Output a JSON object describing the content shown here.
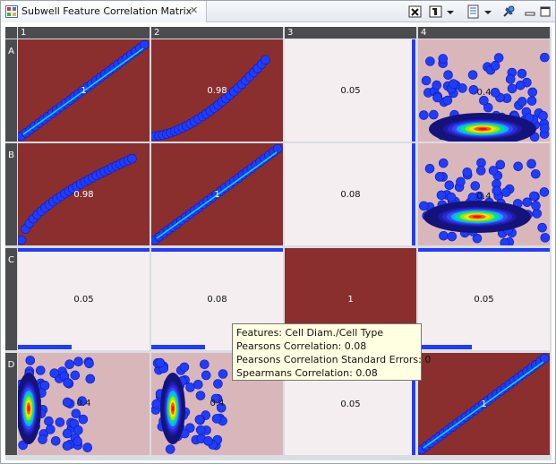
{
  "window": {
    "tab_title": "Subwell Feature Correlation Matrix",
    "close_glyph": "✕"
  },
  "columns": [
    "1",
    "2",
    "3",
    "4"
  ],
  "rows": [
    "A",
    "B",
    "C",
    "D"
  ],
  "colors": {
    "strong": "#8b2e2e",
    "light": "#f4eef0",
    "pale": "#d9b6ba",
    "scatter": "#1f3cff",
    "header_bg": "#4a4c4e"
  },
  "cells": [
    {
      "row": "A",
      "col": "1",
      "value": "1",
      "kind": "diagonal"
    },
    {
      "row": "A",
      "col": "2",
      "value": "0.98",
      "kind": "curve"
    },
    {
      "row": "A",
      "col": "3",
      "value": "0.05",
      "kind": "light"
    },
    {
      "row": "A",
      "col": "4",
      "value": "0.4",
      "kind": "blob"
    },
    {
      "row": "B",
      "col": "1",
      "value": "0.98",
      "kind": "curve-flip"
    },
    {
      "row": "B",
      "col": "2",
      "value": "1",
      "kind": "diagonal"
    },
    {
      "row": "B",
      "col": "3",
      "value": "0.08",
      "kind": "light"
    },
    {
      "row": "B",
      "col": "4",
      "value": "0.4",
      "kind": "blob2"
    },
    {
      "row": "C",
      "col": "1",
      "value": "0.05",
      "kind": "light-bars"
    },
    {
      "row": "C",
      "col": "2",
      "value": "0.08",
      "kind": "light-bars"
    },
    {
      "row": "C",
      "col": "3",
      "value": "1",
      "kind": "solid"
    },
    {
      "row": "C",
      "col": "4",
      "value": "0.05",
      "kind": "light-bars"
    },
    {
      "row": "D",
      "col": "1",
      "value": "0.4",
      "kind": "vblob"
    },
    {
      "row": "D",
      "col": "2",
      "value": "0.4",
      "kind": "vblob2"
    },
    {
      "row": "D",
      "col": "3",
      "value": "0.05",
      "kind": "light"
    },
    {
      "row": "D",
      "col": "4",
      "value": "1",
      "kind": "diagonal"
    }
  ],
  "tooltip": {
    "line1": "Features: Cell Diam./Cell Type",
    "line2": "Pearsons Correlation: 0.08",
    "line3": "Pearsons Correlation Standard Errors: 0",
    "line4": "Spearmans Correlation: 0.08"
  },
  "icons": {
    "tab": "matrix-view-icon",
    "toolbar": [
      "clear-icon",
      "layout-icon",
      "dropdown-icon",
      "settings-icon",
      "pin-icon",
      "minimize-icon",
      "maximize-icon"
    ]
  }
}
